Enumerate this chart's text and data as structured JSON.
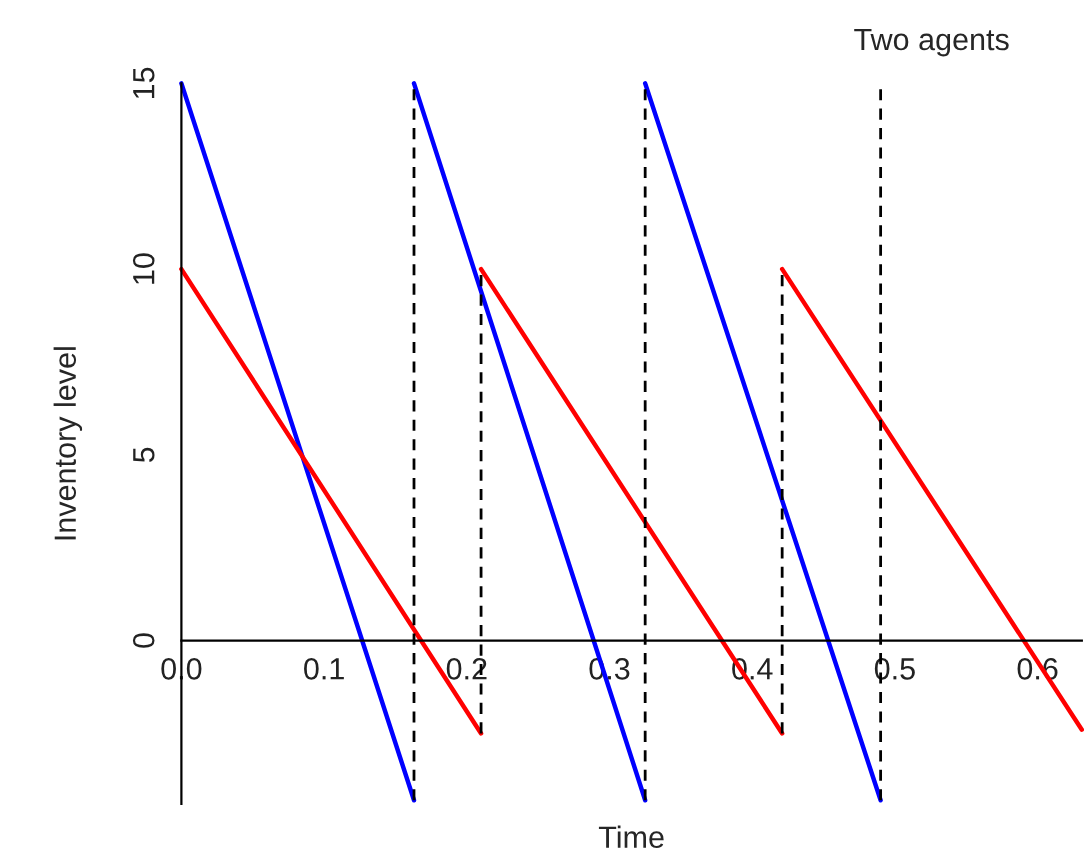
{
  "chart_data": {
    "type": "line",
    "title": "Two agents",
    "xlabel": "Time",
    "ylabel": "Inventory level",
    "xlim": [
      0,
      0.631
    ],
    "ylim": [
      -4.4,
      15
    ],
    "xticks": [
      {
        "value": 0,
        "label": "0.0"
      },
      0.1,
      0.2,
      0.3,
      0.4,
      0.5,
      0.6
    ],
    "yticks": [
      0,
      5,
      10,
      15
    ],
    "grid": false,
    "legend": false,
    "marker": "none",
    "series": [
      {
        "color": "#0000ff",
        "line_style": "solid",
        "x": [
          0,
          0.163,
          null,
          0.163,
          0.325,
          null,
          0.325,
          0.49
        ],
        "values": [
          15,
          -4.3,
          null,
          15,
          -4.3,
          null,
          15,
          -4.3
        ]
      },
      {
        "color": "#ff0000",
        "line_style": "solid",
        "x": [
          0,
          0.21,
          null,
          0.21,
          0.421,
          null,
          0.421,
          0.631
        ],
        "values": [
          10,
          -2.5,
          null,
          10,
          -2.5,
          null,
          10,
          -2.4
        ]
      },
      {
        "color": "#000000",
        "line_style": "dashed",
        "x": [
          0.163,
          0.163,
          null,
          0.21,
          0.21,
          null,
          0.325,
          0.325,
          null,
          0.421,
          0.421,
          null,
          0.49,
          0.49
        ],
        "values": [
          -4.3,
          15,
          null,
          -2.5,
          10,
          null,
          -4.3,
          15,
          null,
          -2.5,
          10,
          null,
          -4.3,
          15
        ]
      }
    ]
  }
}
